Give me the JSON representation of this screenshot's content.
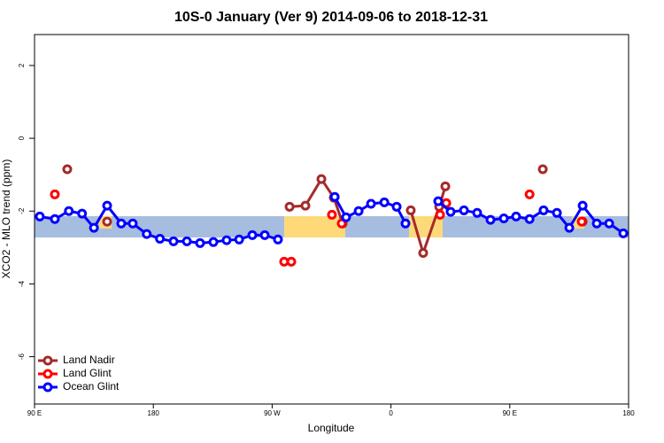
{
  "chart_data": {
    "type": "line",
    "title": "10S-0 January (Ver 9)   2014-09-06 to 2018-12-31",
    "x_label": "Longitude",
    "y_label": "XCO2 - MLO trend (ppm)",
    "xlim": [
      90,
      540
    ],
    "ylim": [
      -7.3,
      2.85
    ],
    "xticks": [
      {
        "value": 90,
        "label": "90 E"
      },
      180,
      {
        "value": 270,
        "label": "90 W"
      },
      {
        "value": 360,
        "label": "0"
      },
      {
        "value": 450,
        "label": "90 E"
      },
      {
        "value": 540,
        "label": "180"
      }
    ],
    "yticks": [
      -6,
      -4,
      -2,
      0,
      2
    ],
    "legend": "lower left",
    "series": [
      {
        "name": "Land Nadir",
        "color": "#a52a2a",
        "x": [
          114.8,
          null,
          145,
          null,
          283.2,
          295.2,
          307.3,
          316.7,
          323.4,
          null,
          375,
          384.4,
          396.5,
          401.2,
          null,
          475,
          null,
          505.2
        ],
        "values": [
          -0.85,
          null,
          -2.29,
          null,
          -1.88,
          -1.85,
          -1.12,
          -1.63,
          -2.34,
          null,
          -1.98,
          -3.15,
          -1.88,
          -1.32,
          null,
          -0.85,
          null,
          -2.29
        ]
      },
      {
        "name": "Land Glint",
        "color": "#ff0000",
        "x": [
          105.4,
          null,
          279.1,
          null,
          284.5,
          null,
          315.3,
          null,
          322.7,
          null,
          397.2,
          null,
          401.9,
          null,
          465,
          null,
          504.5
        ],
        "values": [
          -1.54,
          null,
          -3.39,
          null,
          -3.39,
          null,
          -2.1,
          null,
          -2.34,
          null,
          -2.1,
          null,
          -1.78,
          null,
          -1.54,
          null,
          -2.29
        ]
      },
      {
        "name": "Ocean Glint",
        "color": "#0000ff",
        "x": [
          94,
          105.4,
          116,
          126,
          135,
          145,
          155.7,
          164.4,
          175,
          185,
          195.3,
          205.4,
          215.4,
          225.5,
          235.5,
          245,
          255,
          264.4,
          274.4,
          null,
          317.4,
          326,
          335.5,
          344.9,
          355,
          364.3,
          371,
          null,
          395.8,
          405.2,
          415.3,
          425.3,
          435.4,
          445.5,
          454.8,
          465,
          475.6,
          485.7,
          495.1,
          505.2,
          515.9,
          525.3,
          536
        ],
        "values": [
          -2.15,
          -2.22,
          -2.0,
          -2.07,
          -2.46,
          -1.85,
          -2.34,
          -2.34,
          -2.63,
          -2.76,
          -2.83,
          -2.83,
          -2.88,
          -2.85,
          -2.8,
          -2.78,
          -2.66,
          -2.66,
          -2.78,
          null,
          -1.61,
          -2.17,
          -2.0,
          -1.8,
          -1.76,
          -1.88,
          -2.34,
          null,
          -1.73,
          -2.02,
          -1.98,
          -2.05,
          -2.24,
          -2.2,
          -2.15,
          -2.22,
          -1.98,
          -2.05,
          -2.46,
          -1.85,
          -2.34,
          -2.34,
          -2.61
        ]
      }
    ]
  }
}
